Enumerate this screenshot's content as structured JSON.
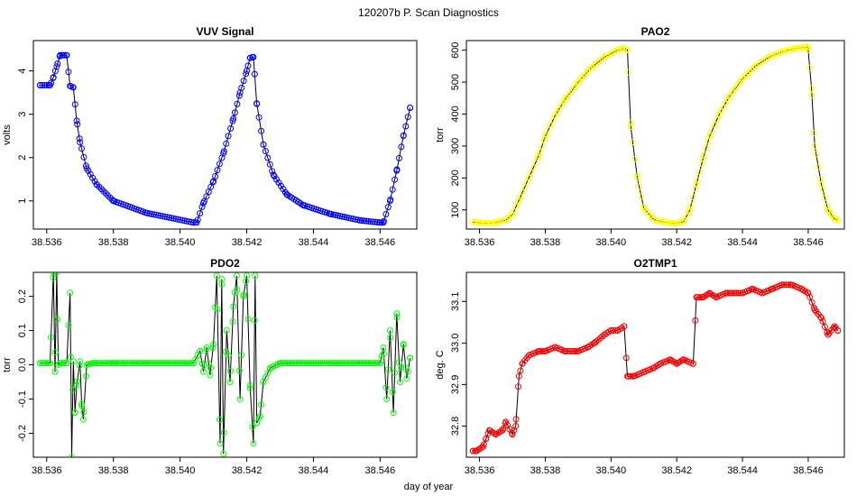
{
  "figure": {
    "title": "120207b   P. Scan Diagnostics",
    "xlabel": "day of year"
  },
  "colors": {
    "line": "#000000",
    "frame": "#000000",
    "background": "#ffffff"
  },
  "chart_data": [
    {
      "id": "vuv",
      "type": "line",
      "title": "VUV Signal",
      "ylabel": "volts",
      "point_color": "#0000ff",
      "xlim": [
        38.5356,
        38.5471
      ],
      "ylim": [
        0.35,
        4.7
      ],
      "xticks": [
        38.536,
        38.538,
        38.54,
        38.542,
        38.544,
        38.546
      ],
      "xtick_labels": [
        "38.536",
        "38.538",
        "38.540",
        "38.542",
        "38.544",
        "38.546"
      ],
      "yticks": [
        1,
        2,
        3,
        4
      ],
      "ytick_labels": [
        "1",
        "2",
        "3",
        "4"
      ],
      "x": [
        38.5358,
        38.5361,
        38.5362,
        38.5363,
        38.5364,
        38.5365,
        38.5366,
        38.5367,
        38.5368,
        38.5369,
        38.537,
        38.5372,
        38.5375,
        38.538,
        38.539,
        38.5404,
        38.5405,
        38.5407,
        38.541,
        38.5413,
        38.5416,
        38.5418,
        38.542,
        38.5421,
        38.5422,
        38.5423,
        38.5425,
        38.5428,
        38.5432,
        38.5437,
        38.5445,
        38.5454,
        38.546,
        38.5461,
        38.5463,
        38.5465,
        38.5467,
        38.5469
      ],
      "y": [
        3.67,
        3.67,
        3.85,
        4.1,
        4.36,
        4.36,
        4.36,
        3.65,
        3.62,
        2.85,
        2.35,
        1.75,
        1.38,
        1.0,
        0.72,
        0.5,
        0.5,
        0.95,
        1.45,
        2.1,
        2.9,
        3.5,
        4.0,
        4.3,
        4.32,
        3.25,
        2.3,
        1.6,
        1.15,
        0.9,
        0.7,
        0.55,
        0.5,
        0.5,
        1.0,
        1.7,
        2.5,
        3.15
      ]
    },
    {
      "id": "pao2",
      "type": "line",
      "title": "PAO2",
      "ylabel": "torr",
      "point_color": "#ffff00",
      "xlim": [
        38.5356,
        38.5471
      ],
      "ylim": [
        40,
        630
      ],
      "xticks": [
        38.536,
        38.538,
        38.54,
        38.542,
        38.544,
        38.546
      ],
      "xtick_labels": [
        "38.536",
        "38.538",
        "38.540",
        "38.542",
        "38.544",
        "38.546"
      ],
      "yticks": [
        100,
        200,
        300,
        400,
        500,
        600
      ],
      "ytick_labels": [
        "100",
        "200",
        "300",
        "400",
        "500",
        "600"
      ],
      "x": [
        38.5358,
        38.5362,
        38.5365,
        38.5368,
        38.537,
        38.5372,
        38.5375,
        38.5378,
        38.538,
        38.5383,
        38.5386,
        38.539,
        38.5394,
        38.5398,
        38.5402,
        38.5404,
        38.5405,
        38.5406,
        38.5408,
        38.541,
        38.5413,
        38.5416,
        38.5419,
        38.5422,
        38.5424,
        38.5426,
        38.5428,
        38.543,
        38.5433,
        38.5436,
        38.544,
        38.5444,
        38.5448,
        38.5452,
        38.5456,
        38.546,
        38.546,
        38.5461,
        38.5462,
        38.5464,
        38.5466,
        38.5468,
        38.5469
      ],
      "y": [
        62,
        58,
        60,
        68,
        85,
        130,
        200,
        270,
        330,
        395,
        445,
        500,
        545,
        578,
        600,
        605,
        600,
        360,
        200,
        105,
        70,
        62,
        58,
        62,
        100,
        180,
        260,
        330,
        400,
        455,
        510,
        550,
        578,
        595,
        605,
        610,
        600,
        480,
        300,
        180,
        100,
        72,
        68
      ]
    },
    {
      "id": "pdo2",
      "type": "line",
      "title": "PDO2",
      "ylabel": "torr",
      "point_color": "#00ff00",
      "xlim": [
        38.5356,
        38.5471
      ],
      "ylim": [
        -0.27,
        0.27
      ],
      "xticks": [
        38.536,
        38.538,
        38.54,
        38.542,
        38.544,
        38.546
      ],
      "xtick_labels": [
        "38.536",
        "38.538",
        "38.540",
        "38.542",
        "38.544",
        "38.546"
      ],
      "yticks": [
        -0.2,
        -0.1,
        0.0,
        0.1,
        0.2
      ],
      "ytick_labels": [
        "-0.2",
        "-0.1",
        "0.0",
        "0.1",
        "0.2"
      ],
      "x": [
        38.5358,
        38.5361,
        38.5362,
        38.53625,
        38.5363,
        38.53635,
        38.5364,
        38.5366,
        38.5367,
        38.53675,
        38.5368,
        38.53685,
        38.5369,
        38.537,
        38.53705,
        38.5371,
        38.5372,
        38.5374,
        38.538,
        38.5404,
        38.5406,
        38.5407,
        38.5408,
        38.5409,
        38.541,
        38.5411,
        38.5412,
        38.54125,
        38.5413,
        38.5414,
        38.5415,
        38.5416,
        38.5417,
        38.5418,
        38.5419,
        38.542,
        38.5421,
        38.5422,
        38.54225,
        38.5423,
        38.5424,
        38.5425,
        38.5427,
        38.543,
        38.546,
        38.5461,
        38.5462,
        38.5463,
        38.5464,
        38.5465,
        38.5466,
        38.5467,
        38.5468,
        38.5469
      ],
      "y": [
        0.005,
        0.005,
        0.27,
        -0.02,
        0.27,
        0.0,
        0.005,
        0.005,
        0.21,
        -0.27,
        0.01,
        -0.14,
        -0.06,
        0.01,
        -0.12,
        -0.16,
        0.0,
        0.005,
        0.005,
        0.005,
        0.04,
        -0.02,
        0.05,
        -0.03,
        0.06,
        0.26,
        -0.23,
        0.25,
        -0.26,
        0.1,
        -0.05,
        0.17,
        0.26,
        -0.1,
        0.2,
        0.26,
        -0.06,
        -0.23,
        0.26,
        -0.17,
        -0.15,
        -0.05,
        -0.01,
        0.005,
        0.005,
        0.05,
        -0.1,
        0.1,
        -0.14,
        0.15,
        -0.05,
        0.06,
        -0.04,
        0.02
      ]
    },
    {
      "id": "o2tmp1",
      "type": "line",
      "title": "O2TMP1",
      "ylabel": "deg. C",
      "point_color": "#ff0000",
      "xlim": [
        38.5356,
        38.5471
      ],
      "ylim": [
        32.725,
        33.17
      ],
      "xticks": [
        38.536,
        38.538,
        38.54,
        38.542,
        38.544,
        38.546
      ],
      "xtick_labels": [
        "38.536",
        "38.538",
        "38.540",
        "38.542",
        "38.544",
        "38.546"
      ],
      "yticks": [
        32.8,
        32.9,
        33.0,
        33.1
      ],
      "ytick_labels": [
        "32.8",
        "32.9",
        "33.0",
        "33.1"
      ],
      "x": [
        38.5358,
        38.5359,
        38.5361,
        38.5362,
        38.5363,
        38.5365,
        38.5367,
        38.5368,
        38.537,
        38.5371,
        38.5372,
        38.5373,
        38.5375,
        38.5378,
        38.538,
        38.5383,
        38.5386,
        38.5389,
        38.539,
        38.5393,
        38.5395,
        38.5398,
        38.54,
        38.5402,
        38.5404,
        38.5405,
        38.5407,
        38.541,
        38.5413,
        38.5415,
        38.5418,
        38.542,
        38.5422,
        38.5425,
        38.5426,
        38.5428,
        38.543,
        38.5432,
        38.5435,
        38.5438,
        38.544,
        38.5443,
        38.5446,
        38.5449,
        38.5452,
        38.5455,
        38.5458,
        38.546,
        38.5462,
        38.5464,
        38.5466,
        38.5468,
        38.5469
      ],
      "y": [
        32.74,
        32.74,
        32.75,
        32.77,
        32.79,
        32.78,
        32.79,
        32.81,
        32.78,
        32.8,
        32.92,
        32.95,
        32.97,
        32.98,
        32.98,
        32.99,
        32.98,
        32.98,
        32.98,
        32.99,
        33.0,
        33.02,
        33.03,
        33.03,
        33.04,
        32.92,
        32.92,
        32.93,
        32.94,
        32.95,
        32.96,
        32.95,
        32.96,
        32.95,
        33.11,
        33.11,
        33.12,
        33.11,
        33.12,
        33.12,
        33.12,
        33.13,
        33.12,
        33.13,
        33.14,
        33.14,
        33.13,
        33.12,
        33.08,
        33.06,
        33.02,
        33.04,
        33.03
      ]
    }
  ]
}
